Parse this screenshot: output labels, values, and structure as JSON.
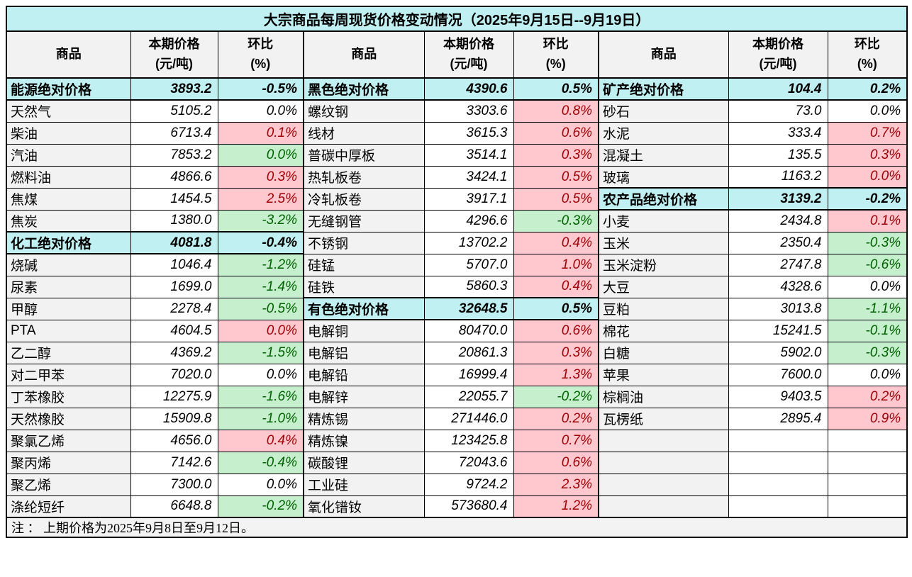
{
  "title": "大宗商品每周现货价格变动情况（2025年9月15日--9月19日）",
  "note": "注 ： 上期价格为2025年9月8日至9月12日。",
  "header": {
    "commodity": "商品",
    "price_line1": "本期价格",
    "price_line2": "(元/吨)",
    "change_line1": "环比",
    "change_line2": "(%)"
  },
  "colors": {
    "title_and_category_bg": "#c0f0f2",
    "header_and_name_bg": "#f2f2f2",
    "increase_bg": "#ffc7ce",
    "increase_text": "#9c0006",
    "decrease_bg": "#c6efce",
    "decrease_text": "#006100",
    "note_bg": "#f3f3f3",
    "border": "#000000"
  },
  "groups": [
    {
      "rows": [
        {
          "name": "能源绝对价格",
          "price": "3893.2",
          "change": "-0.5%",
          "type": "cat"
        },
        {
          "name": "天然气",
          "price": "5105.2",
          "change": "0.0%",
          "type": "flat"
        },
        {
          "name": "柴油",
          "price": "6713.4",
          "change": "0.1%",
          "type": "up"
        },
        {
          "name": "汽油",
          "price": "7853.2",
          "change": "0.0%",
          "type": "down"
        },
        {
          "name": "燃料油",
          "price": "4866.6",
          "change": "0.3%",
          "type": "up"
        },
        {
          "name": "焦煤",
          "price": "1454.5",
          "change": "2.5%",
          "type": "up"
        },
        {
          "name": "焦炭",
          "price": "1380.0",
          "change": "-3.2%",
          "type": "down"
        },
        {
          "name": "化工绝对价格",
          "price": "4081.8",
          "change": "-0.4%",
          "type": "cat"
        },
        {
          "name": "烧碱",
          "price": "1046.4",
          "change": "-1.2%",
          "type": "down"
        },
        {
          "name": "尿素",
          "price": "1699.0",
          "change": "-1.4%",
          "type": "down"
        },
        {
          "name": "甲醇",
          "price": "2278.4",
          "change": "-0.5%",
          "type": "down"
        },
        {
          "name": "PTA",
          "price": "4604.5",
          "change": "0.0%",
          "type": "up"
        },
        {
          "name": "乙二醇",
          "price": "4369.2",
          "change": "-1.5%",
          "type": "down"
        },
        {
          "name": "对二甲苯",
          "price": "7020.0",
          "change": "0.0%",
          "type": "flat"
        },
        {
          "name": "丁苯橡胶",
          "price": "12275.9",
          "change": "-1.6%",
          "type": "down"
        },
        {
          "name": "天然橡胶",
          "price": "15909.8",
          "change": "-1.0%",
          "type": "down"
        },
        {
          "name": "聚氯乙烯",
          "price": "4656.0",
          "change": "0.4%",
          "type": "up"
        },
        {
          "name": "聚丙烯",
          "price": "7142.6",
          "change": "-0.4%",
          "type": "down"
        },
        {
          "name": "聚乙烯",
          "price": "7300.0",
          "change": "0.0%",
          "type": "flat"
        },
        {
          "name": "涤纶短纤",
          "price": "6648.8",
          "change": "-0.2%",
          "type": "down"
        }
      ]
    },
    {
      "rows": [
        {
          "name": "黑色绝对价格",
          "price": "4390.6",
          "change": "0.5%",
          "type": "cat"
        },
        {
          "name": "螺纹钢",
          "price": "3303.6",
          "change": "0.8%",
          "type": "up"
        },
        {
          "name": "线材",
          "price": "3615.3",
          "change": "0.6%",
          "type": "up"
        },
        {
          "name": "普碳中厚板",
          "price": "3514.1",
          "change": "0.3%",
          "type": "up"
        },
        {
          "name": "热轧板卷",
          "price": "3424.1",
          "change": "0.5%",
          "type": "up"
        },
        {
          "name": "冷轧板卷",
          "price": "3917.1",
          "change": "0.5%",
          "type": "up"
        },
        {
          "name": "无缝钢管",
          "price": "4296.6",
          "change": "-0.3%",
          "type": "down"
        },
        {
          "name": "不锈钢",
          "price": "13702.2",
          "change": "0.4%",
          "type": "up"
        },
        {
          "name": "硅锰",
          "price": "5707.0",
          "change": "1.0%",
          "type": "up"
        },
        {
          "name": "硅铁",
          "price": "5860.3",
          "change": "0.4%",
          "type": "up"
        },
        {
          "name": "有色绝对价格",
          "price": "32648.5",
          "change": "0.5%",
          "type": "cat"
        },
        {
          "name": "电解铜",
          "price": "80470.0",
          "change": "0.6%",
          "type": "up"
        },
        {
          "name": "电解铝",
          "price": "20861.3",
          "change": "0.3%",
          "type": "up"
        },
        {
          "name": "电解铅",
          "price": "16999.4",
          "change": "1.3%",
          "type": "up"
        },
        {
          "name": "电解锌",
          "price": "22055.7",
          "change": "-0.2%",
          "type": "down"
        },
        {
          "name": "精炼锡",
          "price": "271446.0",
          "change": "0.2%",
          "type": "up"
        },
        {
          "name": "精炼镍",
          "price": "123425.8",
          "change": "0.7%",
          "type": "up"
        },
        {
          "name": "碳酸锂",
          "price": "72043.6",
          "change": "0.6%",
          "type": "up"
        },
        {
          "name": "工业硅",
          "price": "9724.2",
          "change": "2.3%",
          "type": "up"
        },
        {
          "name": "氧化镨钕",
          "price": "573680.4",
          "change": "1.2%",
          "type": "up"
        }
      ]
    },
    {
      "rows": [
        {
          "name": "矿产绝对价格",
          "price": "104.4",
          "change": "0.2%",
          "type": "cat"
        },
        {
          "name": "砂石",
          "price": "73.0",
          "change": "0.0%",
          "type": "flat"
        },
        {
          "name": "水泥",
          "price": "333.4",
          "change": "0.7%",
          "type": "up"
        },
        {
          "name": "混凝土",
          "price": "135.5",
          "change": "0.3%",
          "type": "up"
        },
        {
          "name": "玻璃",
          "price": "1163.2",
          "change": "0.0%",
          "type": "up"
        },
        {
          "name": "农产品绝对价格",
          "price": "3139.2",
          "change": "-0.2%",
          "type": "cat"
        },
        {
          "name": "小麦",
          "price": "2434.8",
          "change": "0.1%",
          "type": "up"
        },
        {
          "name": "玉米",
          "price": "2350.4",
          "change": "-0.3%",
          "type": "down"
        },
        {
          "name": "玉米淀粉",
          "price": "2747.8",
          "change": "-0.6%",
          "type": "down"
        },
        {
          "name": "大豆",
          "price": "4328.6",
          "change": "0.0%",
          "type": "flat"
        },
        {
          "name": "豆粕",
          "price": "3013.8",
          "change": "-1.1%",
          "type": "down"
        },
        {
          "name": "棉花",
          "price": "15241.5",
          "change": "-0.1%",
          "type": "down"
        },
        {
          "name": "白糖",
          "price": "5902.0",
          "change": "-0.3%",
          "type": "down"
        },
        {
          "name": "苹果",
          "price": "7600.0",
          "change": "0.0%",
          "type": "flat"
        },
        {
          "name": "棕榈油",
          "price": "9403.5",
          "change": "0.2%",
          "type": "up"
        },
        {
          "name": "瓦楞纸",
          "price": "2895.4",
          "change": "0.9%",
          "type": "up"
        },
        {
          "name": "",
          "price": "",
          "change": "",
          "type": "empty"
        },
        {
          "name": "",
          "price": "",
          "change": "",
          "type": "empty"
        },
        {
          "name": "",
          "price": "",
          "change": "",
          "type": "empty"
        },
        {
          "name": "",
          "price": "",
          "change": "",
          "type": "empty"
        }
      ]
    }
  ]
}
